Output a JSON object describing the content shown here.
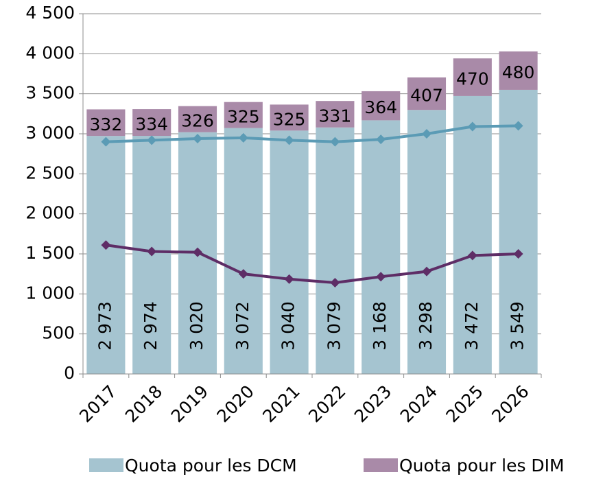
{
  "chart_data": {
    "type": "bar",
    "stacked": true,
    "categories": [
      "2017",
      "2018",
      "2019",
      "2020",
      "2021",
      "2022",
      "2023",
      "2024",
      "2025",
      "2026"
    ],
    "series": [
      {
        "name": "Quota pour les DCM",
        "color": "#a5c4d0",
        "values": [
          2973,
          2974,
          3020,
          3072,
          3040,
          3079,
          3168,
          3298,
          3472,
          3549
        ],
        "value_labels": [
          "2 973",
          "2 974",
          "3 020",
          "3 072",
          "3 040",
          "3 079",
          "3 168",
          "3 298",
          "3 472",
          "3 549"
        ]
      },
      {
        "name": "Quota pour les DIM",
        "color": "#a98aa8",
        "values": [
          332,
          334,
          326,
          325,
          325,
          331,
          364,
          407,
          470,
          480
        ]
      }
    ],
    "lines": [
      {
        "color": "#5b9bb5",
        "values": [
          2900,
          2920,
          2940,
          2950,
          2920,
          2900,
          2930,
          3000,
          3090,
          3100
        ]
      },
      {
        "color": "#5e2d66",
        "values": [
          1610,
          1530,
          1520,
          1250,
          1185,
          1140,
          1215,
          1280,
          1480,
          1500
        ]
      }
    ],
    "ylim": [
      0,
      4500
    ],
    "yticks": [
      0,
      500,
      {
        "value": 1000,
        "label": "1 000"
      },
      {
        "value": 1500,
        "label": "1 500"
      },
      {
        "value": 2000,
        "label": "2 000"
      },
      {
        "value": 2500,
        "label": "2 500"
      },
      {
        "value": 3000,
        "label": "3 000"
      },
      {
        "value": 3500,
        "label": "3 500"
      },
      {
        "value": 4000,
        "label": "4 000"
      },
      {
        "value": 4500,
        "label": "4 500"
      }
    ],
    "grid": true,
    "legend": "bottom"
  }
}
